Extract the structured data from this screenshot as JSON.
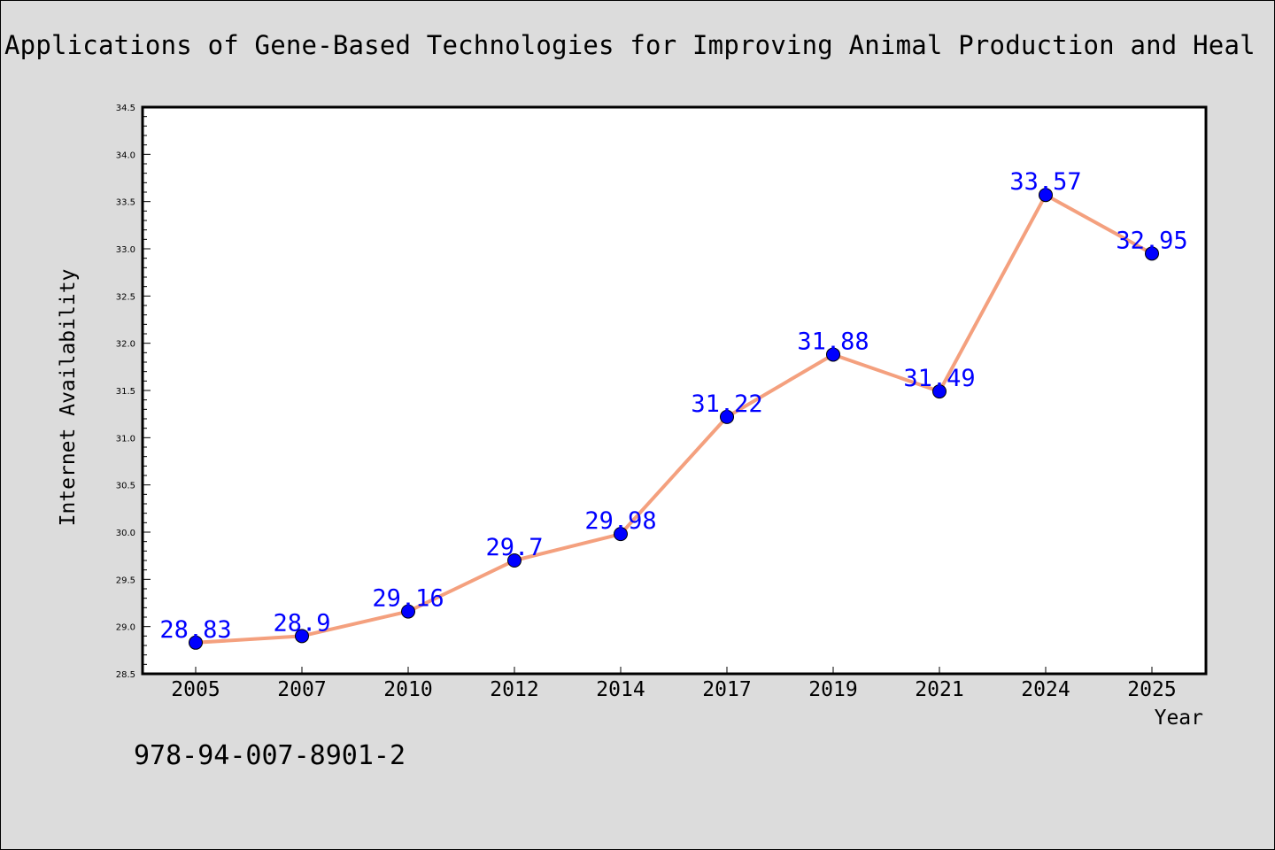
{
  "chart_data": {
    "type": "line",
    "title": "Applications of Gene-Based Technologies for Improving Animal Production and Heal",
    "xlabel": "Year",
    "ylabel": "Internet Availability",
    "categories": [
      "2005",
      "2007",
      "2010",
      "2012",
      "2014",
      "2017",
      "2019",
      "2021",
      "2024",
      "2025"
    ],
    "series": [
      {
        "values": [
          28.83,
          28.9,
          29.16,
          29.7,
          29.98,
          31.22,
          31.88,
          31.49,
          33.57,
          32.95
        ],
        "data_labels": [
          "28.83",
          "28.9",
          "29.16",
          "29.7",
          "29.98",
          "31.22",
          "31.88",
          "31.49",
          "33.57",
          "32.95"
        ]
      }
    ],
    "ylim": [
      28.5,
      34.5
    ],
    "yticks": [
      "28.5",
      "29.0",
      "29.5",
      "30.0",
      "30.5",
      "31.0",
      "31.5",
      "32.0",
      "32.5",
      "33.0",
      "33.5",
      "34.0",
      "34.5"
    ],
    "grid": false,
    "line_color": "#f4a07e",
    "marker_color": "#0000ff",
    "label_color": "#0000ff",
    "background": "#dcdcdc",
    "plot_background": "#ffffff"
  },
  "annotation": {
    "isbn": "978-94-007-8901-2"
  }
}
